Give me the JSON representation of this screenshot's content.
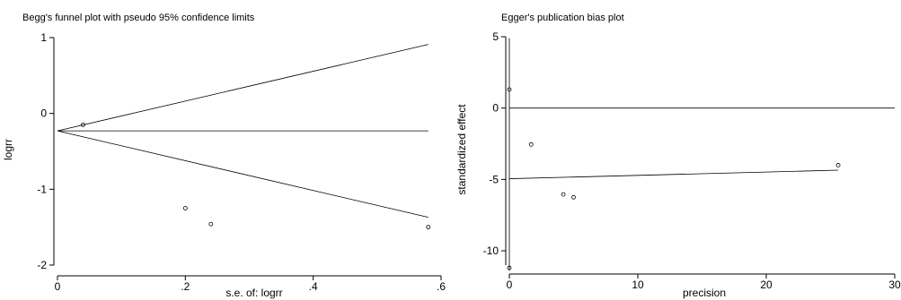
{
  "chart_data": [
    {
      "type": "scatter",
      "title": "Begg's funnel plot with pseudo 95% confidence limits",
      "xlabel": "s.e. of: logrr",
      "ylabel": "logrr",
      "xlim": [
        0,
        0.6
      ],
      "ylim": [
        -2,
        1
      ],
      "x_ticks": [
        0,
        0.2,
        0.4,
        0.6
      ],
      "x_tick_labels": [
        "0",
        ".2",
        ".4",
        ".6"
      ],
      "y_ticks": [
        1,
        0,
        -1,
        -2
      ],
      "y_tick_labels": [
        "1",
        "0",
        "-1",
        "-2"
      ],
      "grid": false,
      "pooled_estimate": -0.23,
      "pseudo_ci_limit_line": {
        "x": [
          0,
          0.58
        ],
        "upper": [
          -0.23,
          0.91
        ],
        "lower": [
          -0.23,
          -1.37
        ]
      },
      "series": [
        {
          "x": [
            0.04,
            0.2,
            0.24,
            0.58
          ],
          "y": [
            -0.15,
            -1.25,
            -1.46,
            -1.5
          ]
        }
      ]
    },
    {
      "type": "scatter",
      "title": "Egger's publication bias plot",
      "xlabel": "precision",
      "ylabel": "standardized effect",
      "xlim": [
        0,
        30
      ],
      "ylim": [
        -11,
        5
      ],
      "x_ticks": [
        0,
        10,
        20,
        30
      ],
      "x_tick_labels": [
        "0",
        "10",
        "20",
        "30"
      ],
      "y_ticks": [
        5,
        0,
        -5,
        -10
      ],
      "y_tick_labels": [
        "5",
        "0",
        "-5",
        "-10"
      ],
      "grid": false,
      "reference_line_y": 0,
      "regression_line": {
        "x": [
          0,
          25.6
        ],
        "y": [
          -4.95,
          -4.35
        ]
      },
      "intercept_ci": {
        "x": 0,
        "upper": 4.9,
        "lower": -11.4
      },
      "series": [
        {
          "x": [
            0,
            0,
            1.7,
            4.2,
            5.0,
            25.6
          ],
          "y": [
            1.3,
            -11.2,
            -2.55,
            -6.05,
            -6.25,
            -4.0
          ]
        }
      ]
    }
  ]
}
